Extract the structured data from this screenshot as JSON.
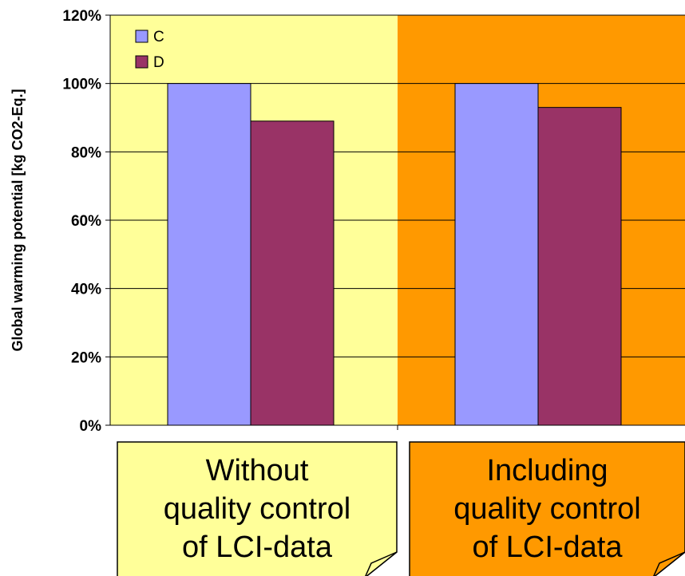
{
  "chart_data": {
    "type": "bar",
    "title": "",
    "ylabel": "Global warming potential [kg CO2-Eq.]",
    "xlabel": "",
    "ylim": [
      0,
      120
    ],
    "yticks": [
      0,
      20,
      40,
      60,
      80,
      100,
      120
    ],
    "ytick_labels": [
      "0%",
      "20%",
      "40%",
      "60%",
      "80%",
      "100%",
      "120%"
    ],
    "y_unit": "%",
    "grid": true,
    "legend_position": "top-left",
    "categories": [
      "Without quality control of LCI-data",
      "Including quality control of LCI-data"
    ],
    "series": [
      {
        "name": "C",
        "values": [
          100,
          100
        ],
        "color": "#9999ff"
      },
      {
        "name": "D",
        "values": [
          89,
          93
        ],
        "color": "#993366"
      }
    ],
    "background_colors": [
      "#ffff99",
      "#ff9900"
    ],
    "annotations": [
      {
        "lines": [
          "Without",
          "quality control",
          "of LCI-data"
        ],
        "color": "#ffff99"
      },
      {
        "lines": [
          "Including",
          "quality control",
          "of LCI-data"
        ],
        "color": "#ff9900"
      }
    ]
  }
}
